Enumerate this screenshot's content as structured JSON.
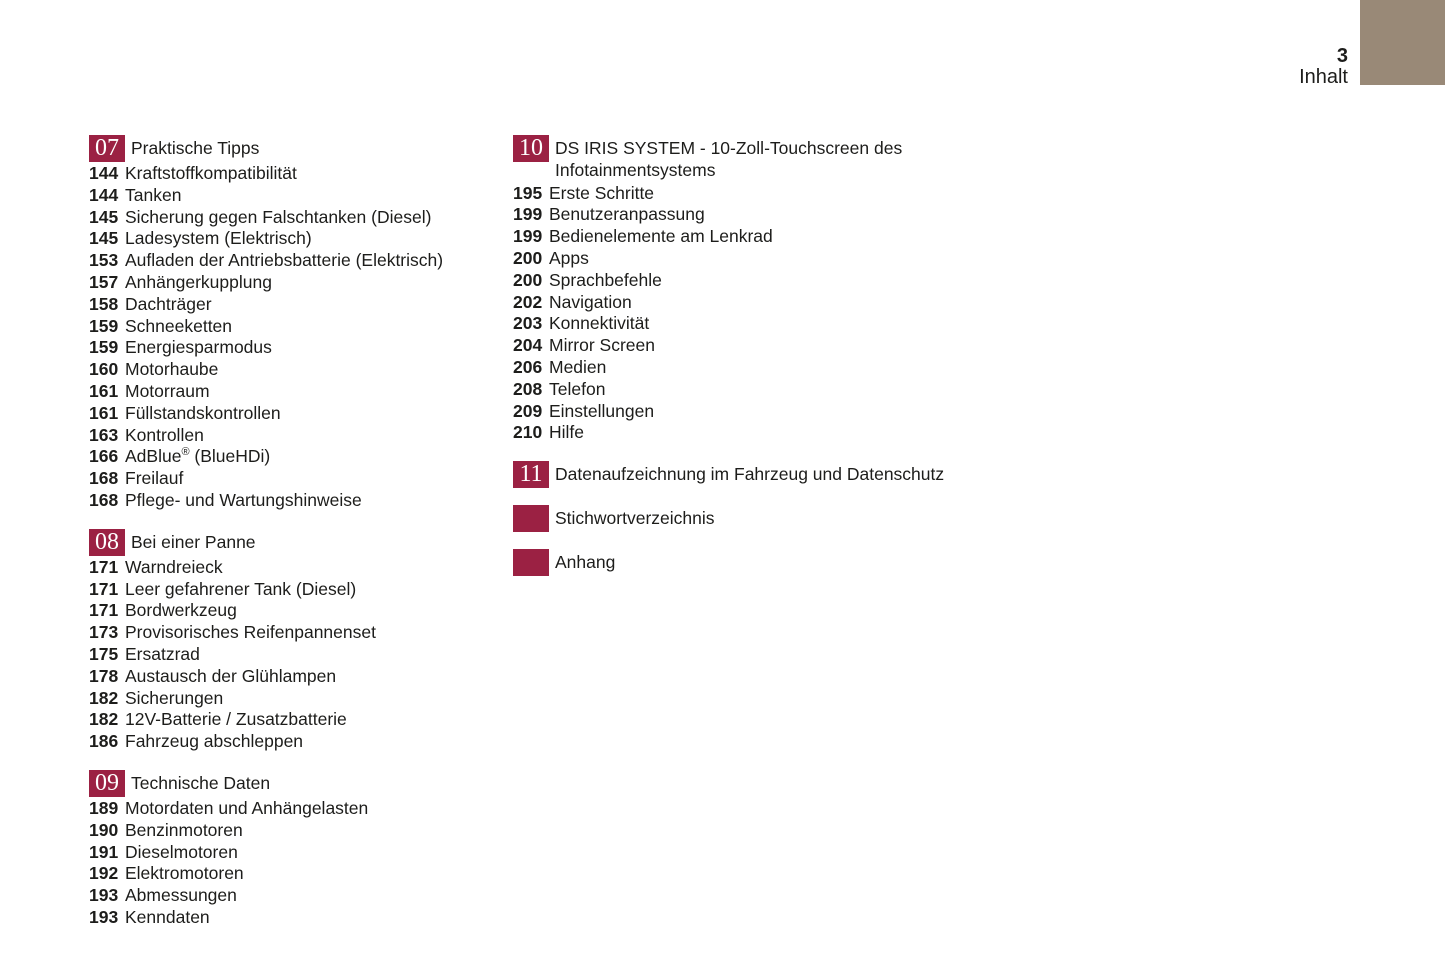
{
  "page": {
    "number": "3",
    "label": "Inhalt"
  },
  "colors": {
    "accent": "#9b2143",
    "corner": "#998977",
    "text": "#1d1d1b"
  },
  "columns": [
    {
      "sections": [
        {
          "num": "07",
          "title_lines": [
            "Praktische Tipps"
          ],
          "entries": [
            {
              "page": "144",
              "label": "Kraftstoffkompatibilität"
            },
            {
              "page": "144",
              "label": "Tanken"
            },
            {
              "page": "145",
              "label": "Sicherung gegen Falschtanken (Diesel)"
            },
            {
              "page": "145",
              "label": "Ladesystem (Elektrisch)"
            },
            {
              "page": "153",
              "label": "Aufladen der Antriebsbatterie (Elektrisch)"
            },
            {
              "page": "157",
              "label": "Anhängerkupplung"
            },
            {
              "page": "158",
              "label": "Dachträger"
            },
            {
              "page": "159",
              "label": "Schneeketten"
            },
            {
              "page": "159",
              "label": "Energiesparmodus"
            },
            {
              "page": "160",
              "label": "Motorhaube"
            },
            {
              "page": "161",
              "label": "Motorraum"
            },
            {
              "page": "161",
              "label": "Füllstandskontrollen"
            },
            {
              "page": "163",
              "label": "Kontrollen"
            },
            {
              "page": "166",
              "label": "AdBlue® (BlueHDi)"
            },
            {
              "page": "168",
              "label": "Freilauf"
            },
            {
              "page": "168",
              "label": "Pflege- und Wartungshinweise"
            }
          ]
        },
        {
          "num": "08",
          "title_lines": [
            "Bei einer Panne"
          ],
          "entries": [
            {
              "page": "171",
              "label": "Warndreieck"
            },
            {
              "page": "171",
              "label": "Leer gefahrener Tank (Diesel)"
            },
            {
              "page": "171",
              "label": "Bordwerkzeug"
            },
            {
              "page": "173",
              "label": "Provisorisches Reifenpannenset"
            },
            {
              "page": "175",
              "label": "Ersatzrad"
            },
            {
              "page": "178",
              "label": "Austausch der Glühlampen"
            },
            {
              "page": "182",
              "label": "Sicherungen"
            },
            {
              "page": "182",
              "label": "12V-Batterie / Zusatzbatterie"
            },
            {
              "page": "186",
              "label": "Fahrzeug abschleppen"
            }
          ]
        },
        {
          "num": "09",
          "title_lines": [
            "Technische Daten"
          ],
          "entries": [
            {
              "page": "189",
              "label": "Motordaten und Anhängelasten"
            },
            {
              "page": "190",
              "label": "Benzinmotoren"
            },
            {
              "page": "191",
              "label": "Dieselmotoren"
            },
            {
              "page": "192",
              "label": "Elektromotoren"
            },
            {
              "page": "193",
              "label": "Abmessungen"
            },
            {
              "page": "193",
              "label": "Kenndaten"
            }
          ]
        }
      ]
    },
    {
      "sections": [
        {
          "num": "10",
          "title_lines": [
            "DS IRIS SYSTEM - 10-Zoll-Touchscreen des",
            "Infotainmentsystems"
          ],
          "entries": [
            {
              "page": "195",
              "label": "Erste Schritte"
            },
            {
              "page": "199",
              "label": "Benutzeranpassung"
            },
            {
              "page": "199",
              "label": "Bedienelemente am Lenkrad"
            },
            {
              "page": "200",
              "label": "Apps"
            },
            {
              "page": "200",
              "label": "Sprachbefehle"
            },
            {
              "page": "202",
              "label": "Navigation"
            },
            {
              "page": "203",
              "label": "Konnektivität"
            },
            {
              "page": "204",
              "label": "Mirror Screen"
            },
            {
              "page": "206",
              "label": "Medien"
            },
            {
              "page": "208",
              "label": "Telefon"
            },
            {
              "page": "209",
              "label": "Einstellungen"
            },
            {
              "page": "210",
              "label": "Hilfe"
            }
          ]
        },
        {
          "num": "11",
          "title_lines": [
            "Datenaufzeichnung im Fahrzeug und Datenschutz"
          ],
          "entries": []
        },
        {
          "num": "",
          "title_lines": [
            "Stichwortverzeichnis"
          ],
          "entries": []
        },
        {
          "num": "",
          "title_lines": [
            "Anhang"
          ],
          "entries": []
        }
      ]
    }
  ]
}
